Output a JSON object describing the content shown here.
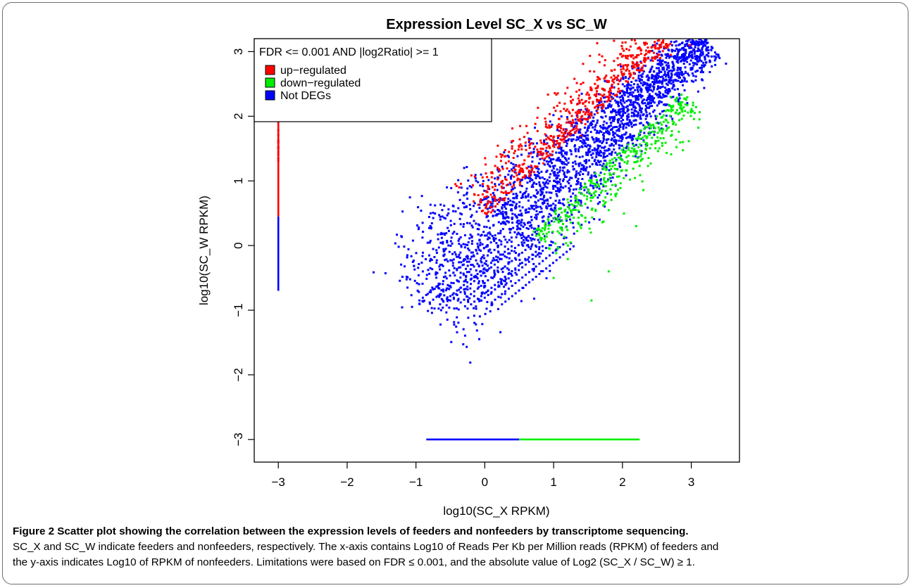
{
  "chart_data": {
    "type": "scatter",
    "title": "Expression Level SC_X vs SC_W",
    "xlabel": "log10(SC_X RPKM)",
    "ylabel": "log10(SC_W RPKM)",
    "xlim": [
      -3.35,
      3.7
    ],
    "ylim": [
      -3.35,
      3.2
    ],
    "xticks": [
      -3,
      -2,
      -1,
      0,
      1,
      2,
      3
    ],
    "yticks": [
      -3,
      -2,
      -1,
      0,
      1,
      2,
      3
    ],
    "xtick_labels": [
      "−3",
      "−2",
      "−1",
      "0",
      "1",
      "2",
      "3"
    ],
    "ytick_labels": [
      "−3",
      "−2",
      "−1",
      "0",
      "1",
      "2",
      "3"
    ],
    "grid": false,
    "legend": {
      "placement": "top-left",
      "title": "FDR <=  0.001  AND |log2Ratio| >=  1",
      "entries": [
        {
          "label": "up−regulated",
          "color": "#ff0000"
        },
        {
          "label": "down−regulated",
          "color": "#00ee00"
        },
        {
          "label": "Not DEGs",
          "color": "#0000ff"
        }
      ]
    },
    "series": [
      {
        "name": "up−regulated",
        "color": "#ff0000",
        "x_range": [
          0.1,
          3.0
        ],
        "y_range": [
          0.8,
          3.2
        ],
        "x_zero_column": {
          "x": -3,
          "y_range": [
            0.45,
            2.15
          ]
        },
        "points": [
          [
            2.9,
            3.2
          ],
          [
            2.98,
            3.1
          ],
          [
            1.6,
            2.5
          ],
          [
            1.75,
            2.6
          ],
          [
            2.1,
            2.7
          ],
          [
            2.55,
            2.9
          ],
          [
            2.7,
            2.95
          ],
          [
            1.25,
            2.3
          ],
          [
            1.4,
            1.7
          ]
        ]
      },
      {
        "name": "down−regulated",
        "color": "#00ee00",
        "x_range": [
          0.5,
          2.7
        ],
        "y_range": [
          -0.9,
          2.35
        ],
        "y_zero_row": {
          "y": -3,
          "x_range": [
            0.5,
            2.25
          ]
        },
        "points": [
          [
            1.55,
            -0.85
          ],
          [
            2.2,
            0.3
          ],
          [
            2.7,
            2.3
          ],
          [
            1.0,
            -0.5
          ],
          [
            1.8,
            -0.4
          ]
        ]
      },
      {
        "name": "Not DEGs",
        "color": "#0000ff",
        "x_range": [
          -1.0,
          3.45
        ],
        "y_range": [
          -0.95,
          3.2
        ],
        "x_zero_column": {
          "x": -3,
          "y_range": [
            -0.7,
            0.45
          ]
        },
        "y_zero_row": {
          "y": -3,
          "x_range": [
            -0.85,
            0.5
          ]
        },
        "points": [
          [
            3.45,
            3.2
          ],
          [
            3.0,
            3.0
          ],
          [
            -0.9,
            -0.4
          ],
          [
            -0.55,
            0.9
          ],
          [
            -0.3,
            1.2
          ],
          [
            -0.95,
            -0.9
          ]
        ]
      }
    ]
  },
  "caption": {
    "label": "Figure 2",
    "title": " Scatter plot showing the correlation between the expression levels of feeders and nonfeeders by transcriptome sequencing.",
    "line1": "SC_X and SC_W indicate feeders and nonfeeders, respectively. The x-axis contains Log10 of Reads Per Kb per Million reads (RPKM) of feeders and",
    "line2": "the y-axis indicates Log10 of RPKM of nonfeeders. Limitations were based on FDR ≤ 0.001, and the absolute value of Log2 (SC_X / SC_W) ≥ 1."
  }
}
